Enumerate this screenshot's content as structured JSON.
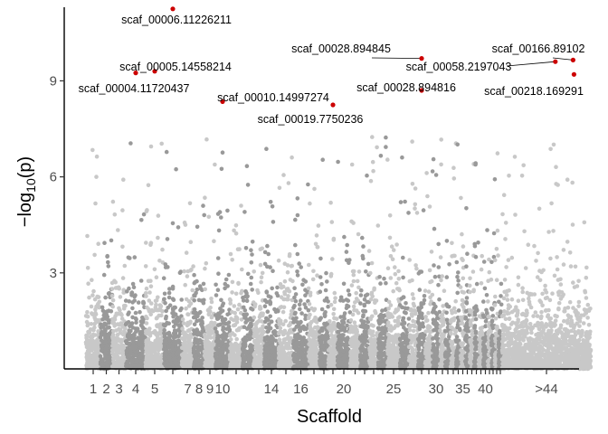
{
  "chart_data": {
    "type": "scatter",
    "title": "",
    "xlabel": "Scaffold",
    "ylabel_main": "−log",
    "ylabel_sub": "10",
    "ylabel_tail": "(p)",
    "ylim": [
      0,
      11.3
    ],
    "yticks": [
      3,
      6,
      9
    ],
    "ytick_labels": [
      "3",
      "6",
      "9"
    ],
    "grid": false,
    "legend": "none",
    "colors": {
      "scaffold_alt_light": "#c8c8c8",
      "scaffold_alt_dark": "#999999",
      "highlight": "#cc0000",
      "axis": "#000000",
      "tick_text": "#4d4d4d"
    },
    "scaffold_groups": {
      "count": 44,
      "ordinals": [
        1,
        2,
        3,
        4,
        5,
        6,
        7,
        8,
        9,
        10,
        11,
        12,
        13,
        14,
        15,
        16,
        17,
        18,
        19,
        20,
        21,
        22,
        23,
        24,
        25,
        26,
        27,
        28,
        29,
        30,
        31,
        32,
        33,
        34,
        35,
        36,
        37,
        38,
        39,
        40,
        41,
        42,
        43,
        44,
        45
      ]
    },
    "x_ticks": [
      {
        "scaffold": 1,
        "label": "1"
      },
      {
        "scaffold": 2,
        "label": "2"
      },
      {
        "scaffold": 3,
        "label": "3"
      },
      {
        "scaffold": 4,
        "label": "4"
      },
      {
        "scaffold": 5,
        "label": "5"
      },
      {
        "scaffold": 6,
        "label": ""
      },
      {
        "scaffold": 7,
        "label": "7"
      },
      {
        "scaffold": 8,
        "label": "8"
      },
      {
        "scaffold": 9,
        "label": "9"
      },
      {
        "scaffold": 10,
        "label": "10"
      },
      {
        "scaffold": 11,
        "label": ""
      },
      {
        "scaffold": 12,
        "label": ""
      },
      {
        "scaffold": 13,
        "label": ""
      },
      {
        "scaffold": 14,
        "label": "14"
      },
      {
        "scaffold": 15,
        "label": ""
      },
      {
        "scaffold": 16,
        "label": "16"
      },
      {
        "scaffold": 17,
        "label": ""
      },
      {
        "scaffold": 18,
        "label": ""
      },
      {
        "scaffold": 19,
        "label": ""
      },
      {
        "scaffold": 20,
        "label": "20"
      },
      {
        "scaffold": 21,
        "label": ""
      },
      {
        "scaffold": 22,
        "label": ""
      },
      {
        "scaffold": 23,
        "label": ""
      },
      {
        "scaffold": 24,
        "label": ""
      },
      {
        "scaffold": 25,
        "label": "25"
      },
      {
        "scaffold": 26,
        "label": ""
      },
      {
        "scaffold": 27,
        "label": ""
      },
      {
        "scaffold": 28,
        "label": ""
      },
      {
        "scaffold": 29,
        "label": ""
      },
      {
        "scaffold": 30,
        "label": "30"
      },
      {
        "scaffold": 31,
        "label": ""
      },
      {
        "scaffold": 32,
        "label": ""
      },
      {
        "scaffold": 33,
        "label": ""
      },
      {
        "scaffold": 34,
        "label": ""
      },
      {
        "scaffold": 35,
        "label": "35"
      },
      {
        "scaffold": 36,
        "label": ""
      },
      {
        "scaffold": 37,
        "label": ""
      },
      {
        "scaffold": 38,
        "label": ""
      },
      {
        "scaffold": 39,
        "label": ""
      },
      {
        "scaffold": 40,
        "label": "40"
      },
      {
        "scaffold": 41,
        "label": ""
      },
      {
        "scaffold": 42,
        "label": ""
      },
      {
        "scaffold": 43,
        "label": ""
      },
      {
        "scaffold": 44,
        "label": ""
      },
      {
        "scaffold": 45,
        "label": ">44"
      }
    ],
    "top_hits": [
      {
        "label": "scaf_00006.11226211",
        "scaffold": 6,
        "y": 11.25
      },
      {
        "label": "scaf_00005.14558214",
        "scaffold": 5,
        "y": 9.3
      },
      {
        "label": "scaf_00004.11720437",
        "scaffold": 4,
        "y": 9.25
      },
      {
        "label": "scaf_00010.14997274",
        "scaffold": 10,
        "y": 8.35
      },
      {
        "label": "scaf_00019.7750236",
        "scaffold": 19,
        "y": 8.25
      },
      {
        "label": "scaf_00028.894845",
        "scaffold": 28,
        "y": 9.7
      },
      {
        "label": "scaf_00028.894816",
        "scaffold": 28,
        "y": 8.7
      },
      {
        "label": "scaf_00058.2197043",
        "scaffold": 45,
        "y": 9.6,
        "offset": 0.6
      },
      {
        "label": "scaf_00166.89102",
        "scaffold": 45,
        "y": 9.65,
        "offset": 0.8
      },
      {
        "label": "scaf_00218.169291",
        "scaffold": 45,
        "y": 9.2,
        "offset": 0.81
      }
    ]
  }
}
